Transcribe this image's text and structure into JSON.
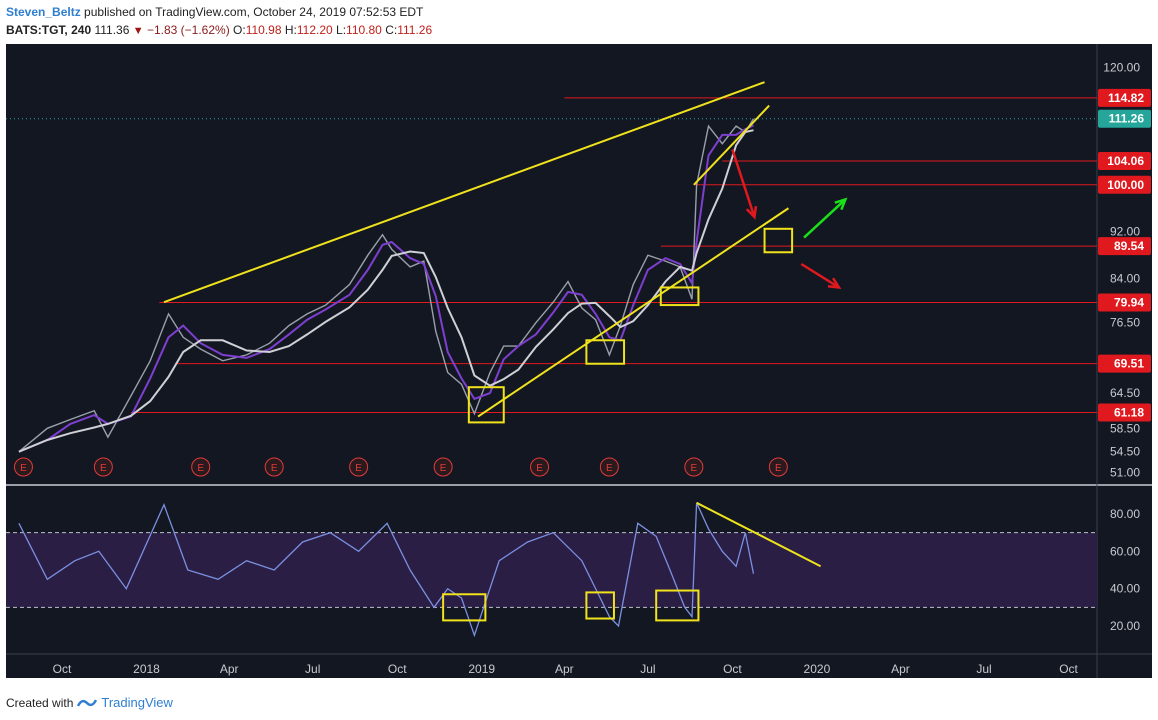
{
  "header": {
    "author": "Steven_Beltz",
    "published_text": "published on TradingView.com, October 24, 2019 07:52:53 EDT",
    "symbol": "BATS:TGT, 240",
    "last": "111.36",
    "change_text": "−1.83 (−1.62%)",
    "o_label": "O:",
    "o_value": "110.98",
    "h_label": "H:",
    "h_value": "112.20",
    "l_label": "L:",
    "l_value": "110.80",
    "c_label": "C:",
    "c_value": "111.26"
  },
  "footer": {
    "created_with": "Created with",
    "brand": "TradingView"
  },
  "colors": {
    "background": "#131722",
    "price": "#9aa0ab",
    "ma_purple": "#7e3fd0",
    "ma_white": "#cfd0d6",
    "level_red": "#e0191e",
    "trend_yellow": "#f0e31c",
    "rsi_line": "#7b90e0",
    "rsi_band": "#2a1e44",
    "arrow_green": "#19e019"
  },
  "chart_data": [
    {
      "type": "line",
      "title": "BATS:TGT, 240",
      "xlabel": "",
      "ylabel": "",
      "x_ticks": [
        "Oct",
        "2018",
        "Apr",
        "Jul",
        "Oct",
        "2019",
        "Apr",
        "Jul",
        "Oct",
        "2020",
        "Apr",
        "Jul",
        "Oct"
      ],
      "x_range": [
        "2017-08",
        "2020-11"
      ],
      "y_ticks": [
        51.0,
        54.5,
        58.5,
        64.5,
        76.5,
        84.0,
        92.0,
        120.0
      ],
      "y_tick_labels": [
        "51.00",
        "54.50",
        "58.50",
        "64.50",
        "76.50",
        "84.00",
        "92.00",
        "120.00"
      ],
      "ylim": [
        49,
        124
      ],
      "grid": false,
      "last_price": 111.26,
      "last_price_label": "111.26",
      "series": [
        {
          "dates": [
            "2017-08-15",
            "2017-09-15",
            "2017-10-10",
            "2017-11-05",
            "2017-11-20",
            "2017-12-15",
            "2018-01-05",
            "2018-01-25",
            "2018-02-10",
            "2018-03-01",
            "2018-03-25",
            "2018-04-20",
            "2018-05-15",
            "2018-06-05",
            "2018-06-25",
            "2018-07-15",
            "2018-08-10",
            "2018-08-30",
            "2018-09-15",
            "2018-09-25",
            "2018-10-15",
            "2018-10-30",
            "2018-11-12",
            "2018-11-25",
            "2018-12-10",
            "2018-12-24",
            "2019-01-10",
            "2019-01-25",
            "2019-02-10",
            "2019-03-01",
            "2019-03-20",
            "2019-04-05",
            "2019-04-20",
            "2019-05-05",
            "2019-05-20",
            "2019-06-01",
            "2019-06-15",
            "2019-07-01",
            "2019-07-20",
            "2019-08-05",
            "2019-08-18",
            "2019-08-23",
            "2019-09-05",
            "2019-09-20",
            "2019-10-05",
            "2019-10-15",
            "2019-10-24"
          ],
          "values": [
            54.5,
            58.5,
            60.0,
            61.5,
            57.0,
            64.0,
            70.0,
            78.0,
            74.0,
            72.0,
            70.0,
            71.0,
            73.0,
            76.0,
            78.0,
            79.5,
            83.0,
            88.0,
            91.5,
            89.0,
            86.0,
            87.0,
            75.0,
            68.0,
            66.0,
            61.0,
            68.0,
            72.5,
            72.5,
            76.5,
            80.0,
            83.5,
            79.0,
            77.0,
            71.0,
            76.0,
            83.0,
            88.0,
            87.0,
            86.0,
            80.5,
            100.0,
            110.0,
            107.0,
            110.0,
            109.0,
            111.26
          ]
        },
        {
          "name": "",
          "values": []
        }
      ],
      "horizontal_levels": [
        {
          "value": 114.82,
          "label": "114.82",
          "start": "2019-04-01"
        },
        {
          "value": 104.06,
          "label": "104.06",
          "start": "2019-09-20"
        },
        {
          "value": 100.0,
          "label": "100.00",
          "start": "2019-08-20"
        },
        {
          "value": 89.54,
          "label": "89.54",
          "start": "2019-07-15"
        },
        {
          "value": 79.94,
          "label": "79.94",
          "start": "2018-01-15"
        },
        {
          "value": 69.51,
          "label": "69.51",
          "start": "2018-02-01"
        },
        {
          "value": 61.18,
          "label": "61.18",
          "start": "2017-12-15"
        }
      ],
      "trendlines": [
        {
          "from": [
            "2018-01-20",
            80.0
          ],
          "to": [
            "2019-11-05",
            117.5
          ]
        },
        {
          "from": [
            "2018-12-28",
            60.5
          ],
          "to": [
            "2019-12-01",
            96.0
          ]
        },
        {
          "from": [
            "2019-08-20",
            100.0
          ],
          "to": [
            "2019-11-10",
            113.5
          ]
        }
      ],
      "highlight_boxes": [
        {
          "from": [
            "2018-12-18",
            59.5
          ],
          "to": [
            "2019-01-25",
            65.5
          ]
        },
        {
          "from": [
            "2019-04-25",
            69.5
          ],
          "to": [
            "2019-06-05",
            73.5
          ]
        },
        {
          "from": [
            "2019-07-15",
            79.5
          ],
          "to": [
            "2019-08-25",
            82.5
          ]
        },
        {
          "from": [
            "2019-11-05",
            88.5
          ],
          "to": [
            "2019-12-05",
            92.5
          ]
        }
      ],
      "earnings_markers": [
        "2017-08-20",
        "2017-11-15",
        "2018-03-01",
        "2018-05-20",
        "2018-08-20",
        "2018-11-20",
        "2019-03-05",
        "2019-05-20",
        "2019-08-20",
        "2019-11-20"
      ],
      "earnings_label": "E"
    },
    {
      "type": "line",
      "title": "",
      "y_ticks": [
        20,
        40,
        60,
        80
      ],
      "y_tick_labels": [
        "20.00",
        "40.00",
        "60.00",
        "80.00"
      ],
      "ylim": [
        5,
        95
      ],
      "band": [
        30,
        70
      ],
      "series": [
        {
          "dates": [
            "2017-08-15",
            "2017-09-15",
            "2017-10-15",
            "2017-11-10",
            "2017-12-10",
            "2018-01-20",
            "2018-02-15",
            "2018-03-20",
            "2018-04-20",
            "2018-05-20",
            "2018-06-20",
            "2018-07-20",
            "2018-08-20",
            "2018-09-20",
            "2018-10-15",
            "2018-11-10",
            "2018-11-25",
            "2018-12-10",
            "2018-12-24",
            "2019-01-20",
            "2019-02-20",
            "2019-03-20",
            "2019-04-20",
            "2019-05-10",
            "2019-05-20",
            "2019-05-30",
            "2019-06-20",
            "2019-07-10",
            "2019-07-25",
            "2019-08-10",
            "2019-08-18",
            "2019-08-23",
            "2019-09-05",
            "2019-09-20",
            "2019-10-05",
            "2019-10-15",
            "2019-10-24"
          ],
          "values": [
            75,
            45,
            55,
            60,
            40,
            85,
            50,
            45,
            55,
            50,
            65,
            70,
            60,
            75,
            50,
            30,
            40,
            35,
            15,
            55,
            65,
            70,
            55,
            35,
            25,
            20,
            75,
            68,
            50,
            30,
            25,
            86,
            72,
            60,
            52,
            70,
            48
          ]
        }
      ],
      "divergence_line": {
        "from": [
          "2019-08-23",
          86
        ],
        "to": [
          "2020-01-05",
          52
        ]
      },
      "highlight_boxes": [
        {
          "from": [
            "2018-11-20",
            23
          ],
          "to": [
            "2019-01-05",
            37
          ]
        },
        {
          "from": [
            "2019-04-25",
            24
          ],
          "to": [
            "2019-05-25",
            38
          ]
        },
        {
          "from": [
            "2019-07-10",
            23
          ],
          "to": [
            "2019-08-25",
            39
          ]
        }
      ]
    }
  ]
}
